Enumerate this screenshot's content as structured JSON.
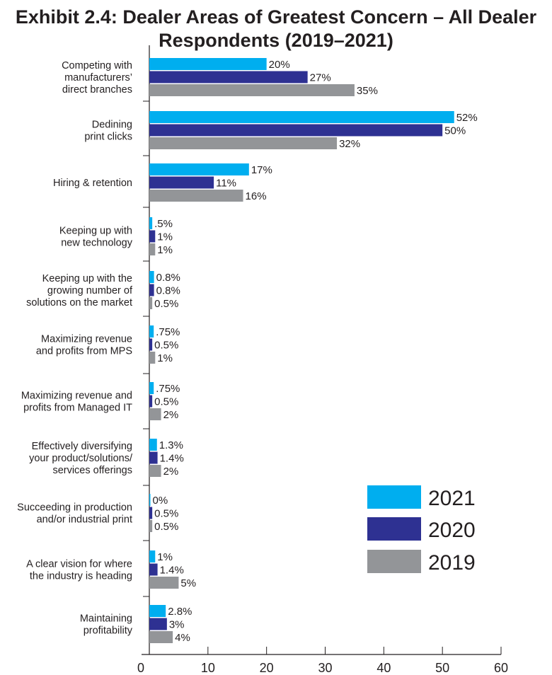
{
  "chart_data": {
    "type": "bar",
    "orientation": "horizontal",
    "title": "Exhibit 2.4: Dealer Areas of Greatest Concern – All Dealer Respondents (2019–2021)",
    "title_line1": "Exhibit 2.4: Dealer Areas of Greatest Concern – All Dealer",
    "title_line2": "Respondents (2019–2021)",
    "categories": [
      [
        "Competing with",
        "manufacturers’",
        "direct branches"
      ],
      [
        "Dedining",
        "print clicks"
      ],
      [
        "Hiring & retention"
      ],
      [
        "Keeping up with",
        "new technology"
      ],
      [
        "Keeping up with the",
        "growing number of",
        "solutions on the market"
      ],
      [
        "Maximizing revenue",
        "and profits from MPS"
      ],
      [
        "Maximizing revenue and",
        "profits from Managed IT"
      ],
      [
        "Effectively diversifying",
        "your product/solutions/",
        "services offerings"
      ],
      [
        "Succeeding in production",
        "and/or industrial print"
      ],
      [
        "A clear vision for where",
        "the industry is heading"
      ],
      [
        "Maintaining",
        "profitability"
      ]
    ],
    "series": [
      {
        "name": "2021",
        "color": "#00aeef",
        "values": [
          20,
          52,
          17,
          0.5,
          0.8,
          0.75,
          0.75,
          1.3,
          0,
          1,
          2.8
        ],
        "labels": [
          "20%",
          "52%",
          "17%",
          ".5%",
          "0.8%",
          ".75%",
          ".75%",
          "1.3%",
          "0%",
          "1%",
          "2.8%"
        ]
      },
      {
        "name": "2020",
        "color": "#2e3192",
        "values": [
          27,
          50,
          11,
          1,
          0.8,
          0.5,
          0.5,
          1.4,
          0.5,
          1.4,
          3
        ],
        "labels": [
          "27%",
          "50%",
          "11%",
          "1%",
          "0.8%",
          "0.5%",
          "0.5%",
          "1.4%",
          "0.5%",
          "1.4%",
          "3%"
        ]
      },
      {
        "name": "2019",
        "color": "#939598",
        "values": [
          35,
          32,
          16,
          1,
          0.5,
          1,
          2,
          2,
          0.5,
          5,
          4
        ],
        "labels": [
          "35%",
          "32%",
          "16%",
          "1%",
          "0.5%",
          "1%",
          "2%",
          "2%",
          "0.5%",
          "5%",
          "4%"
        ]
      }
    ],
    "xlim": [
      0,
      60
    ],
    "xticks": [
      "0",
      "10",
      "20",
      "30",
      "40",
      "50",
      "60"
    ],
    "legend_position": "bottom-right",
    "grid": false
  }
}
